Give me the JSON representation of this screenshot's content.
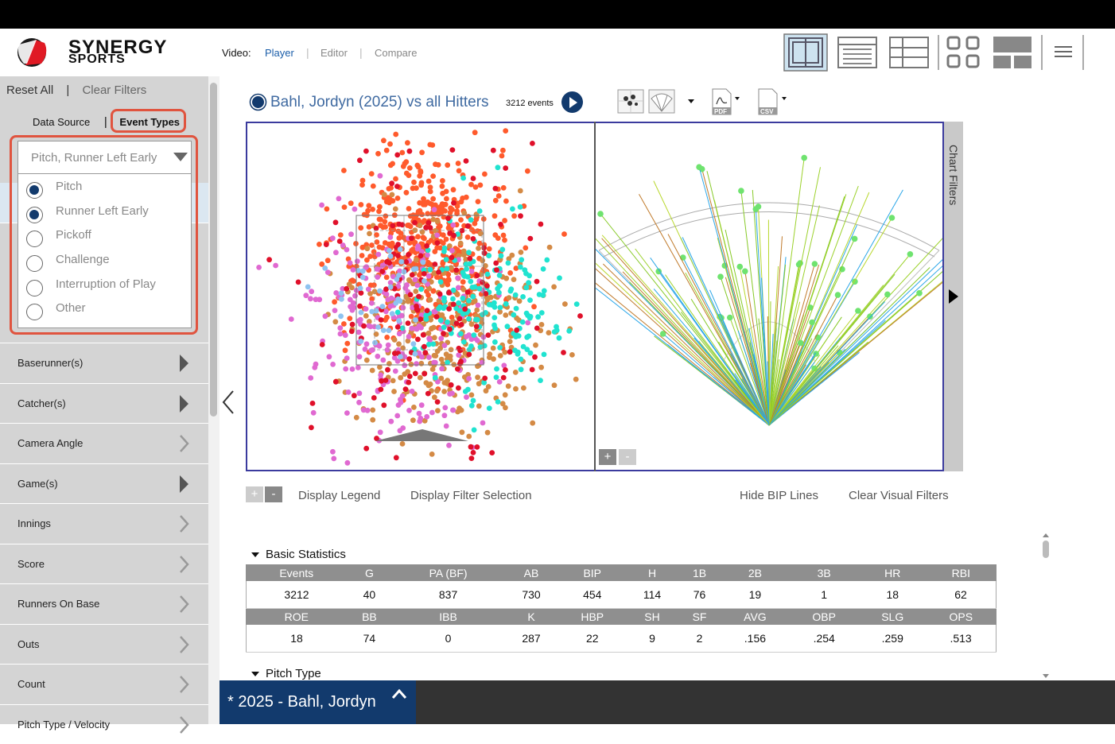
{
  "brand": {
    "line1": "SYNERGY",
    "line2": "SPORTS"
  },
  "header": {
    "video_label": "Video:",
    "nav": [
      {
        "label": "Player",
        "active": true
      },
      {
        "label": "Editor",
        "active": false
      },
      {
        "label": "Compare",
        "active": false
      }
    ],
    "layout_icons": [
      "single-view-icon",
      "table-view-icon",
      "list-view-icon",
      "grid-view-icon",
      "split-view-icon",
      "menu-icon"
    ]
  },
  "sidebar": {
    "reset_all": "Reset All",
    "sep": "|",
    "clear_filters": "Clear Filters",
    "data_source": "Data Source",
    "event_types": "Event Types",
    "event_select_value": "Pitch, Runner Left Early",
    "event_options": [
      {
        "label": "Pitch",
        "checked": true
      },
      {
        "label": "Runner Left Early",
        "checked": true
      },
      {
        "label": "Pickoff",
        "checked": false
      },
      {
        "label": "Challenge",
        "checked": false
      },
      {
        "label": "Interruption of Play",
        "checked": false
      },
      {
        "label": "Other",
        "checked": false
      }
    ],
    "filters": [
      {
        "label": "Baserunner(s)",
        "dark": true
      },
      {
        "label": "Catcher(s)",
        "dark": true
      },
      {
        "label": "Camera Angle",
        "dark": false
      },
      {
        "label": "Game(s)",
        "dark": true
      },
      {
        "label": "Innings",
        "dark": false
      },
      {
        "label": "Score",
        "dark": false
      },
      {
        "label": "Runners On Base",
        "dark": false
      },
      {
        "label": "Outs",
        "dark": false
      },
      {
        "label": "Count",
        "dark": false
      },
      {
        "label": "Pitch Type / Velocity",
        "dark": false
      }
    ]
  },
  "main": {
    "title": "Bahl, Jordyn (2025) vs all Hitters",
    "events": "3212 events",
    "export_icons": [
      "scatter-view-icon",
      "spray-view-icon",
      "pdf-icon",
      "csv-icon"
    ],
    "pdf_label": "PDF",
    "csv_label": "CSV",
    "chart_filters": "Chart Filters",
    "zoom_plus": "+",
    "zoom_minus": "-",
    "links": {
      "display_legend": "Display Legend",
      "display_filter_selection": "Display Filter Selection",
      "hide_bip_lines": "Hide BIP Lines",
      "clear_visual_filters": "Clear Visual Filters"
    },
    "colors": {
      "accent": "#123a6d",
      "link": "#3f6aa1",
      "highlight": "#e0543f"
    }
  },
  "stats": {
    "section": "Basic Statistics",
    "header1": [
      "Events",
      "G",
      "PA (BF)",
      "AB",
      "BIP",
      "H",
      "1B",
      "2B",
      "3B",
      "HR",
      "RBI"
    ],
    "values1": [
      "3212",
      "40",
      "837",
      "730",
      "454",
      "114",
      "76",
      "19",
      "1",
      "18",
      "62"
    ],
    "header2": [
      "ROE",
      "BB",
      "IBB",
      "K",
      "HBP",
      "SH",
      "SF",
      "AVG",
      "OBP",
      "SLG",
      "OPS"
    ],
    "values2": [
      "18",
      "74",
      "0",
      "287",
      "22",
      "9",
      "2",
      ".156",
      ".254",
      ".259",
      ".513"
    ]
  },
  "pitch_type_section": "Pitch Type",
  "bottom": {
    "tab": "* 2025 - Bahl, Jordyn"
  }
}
